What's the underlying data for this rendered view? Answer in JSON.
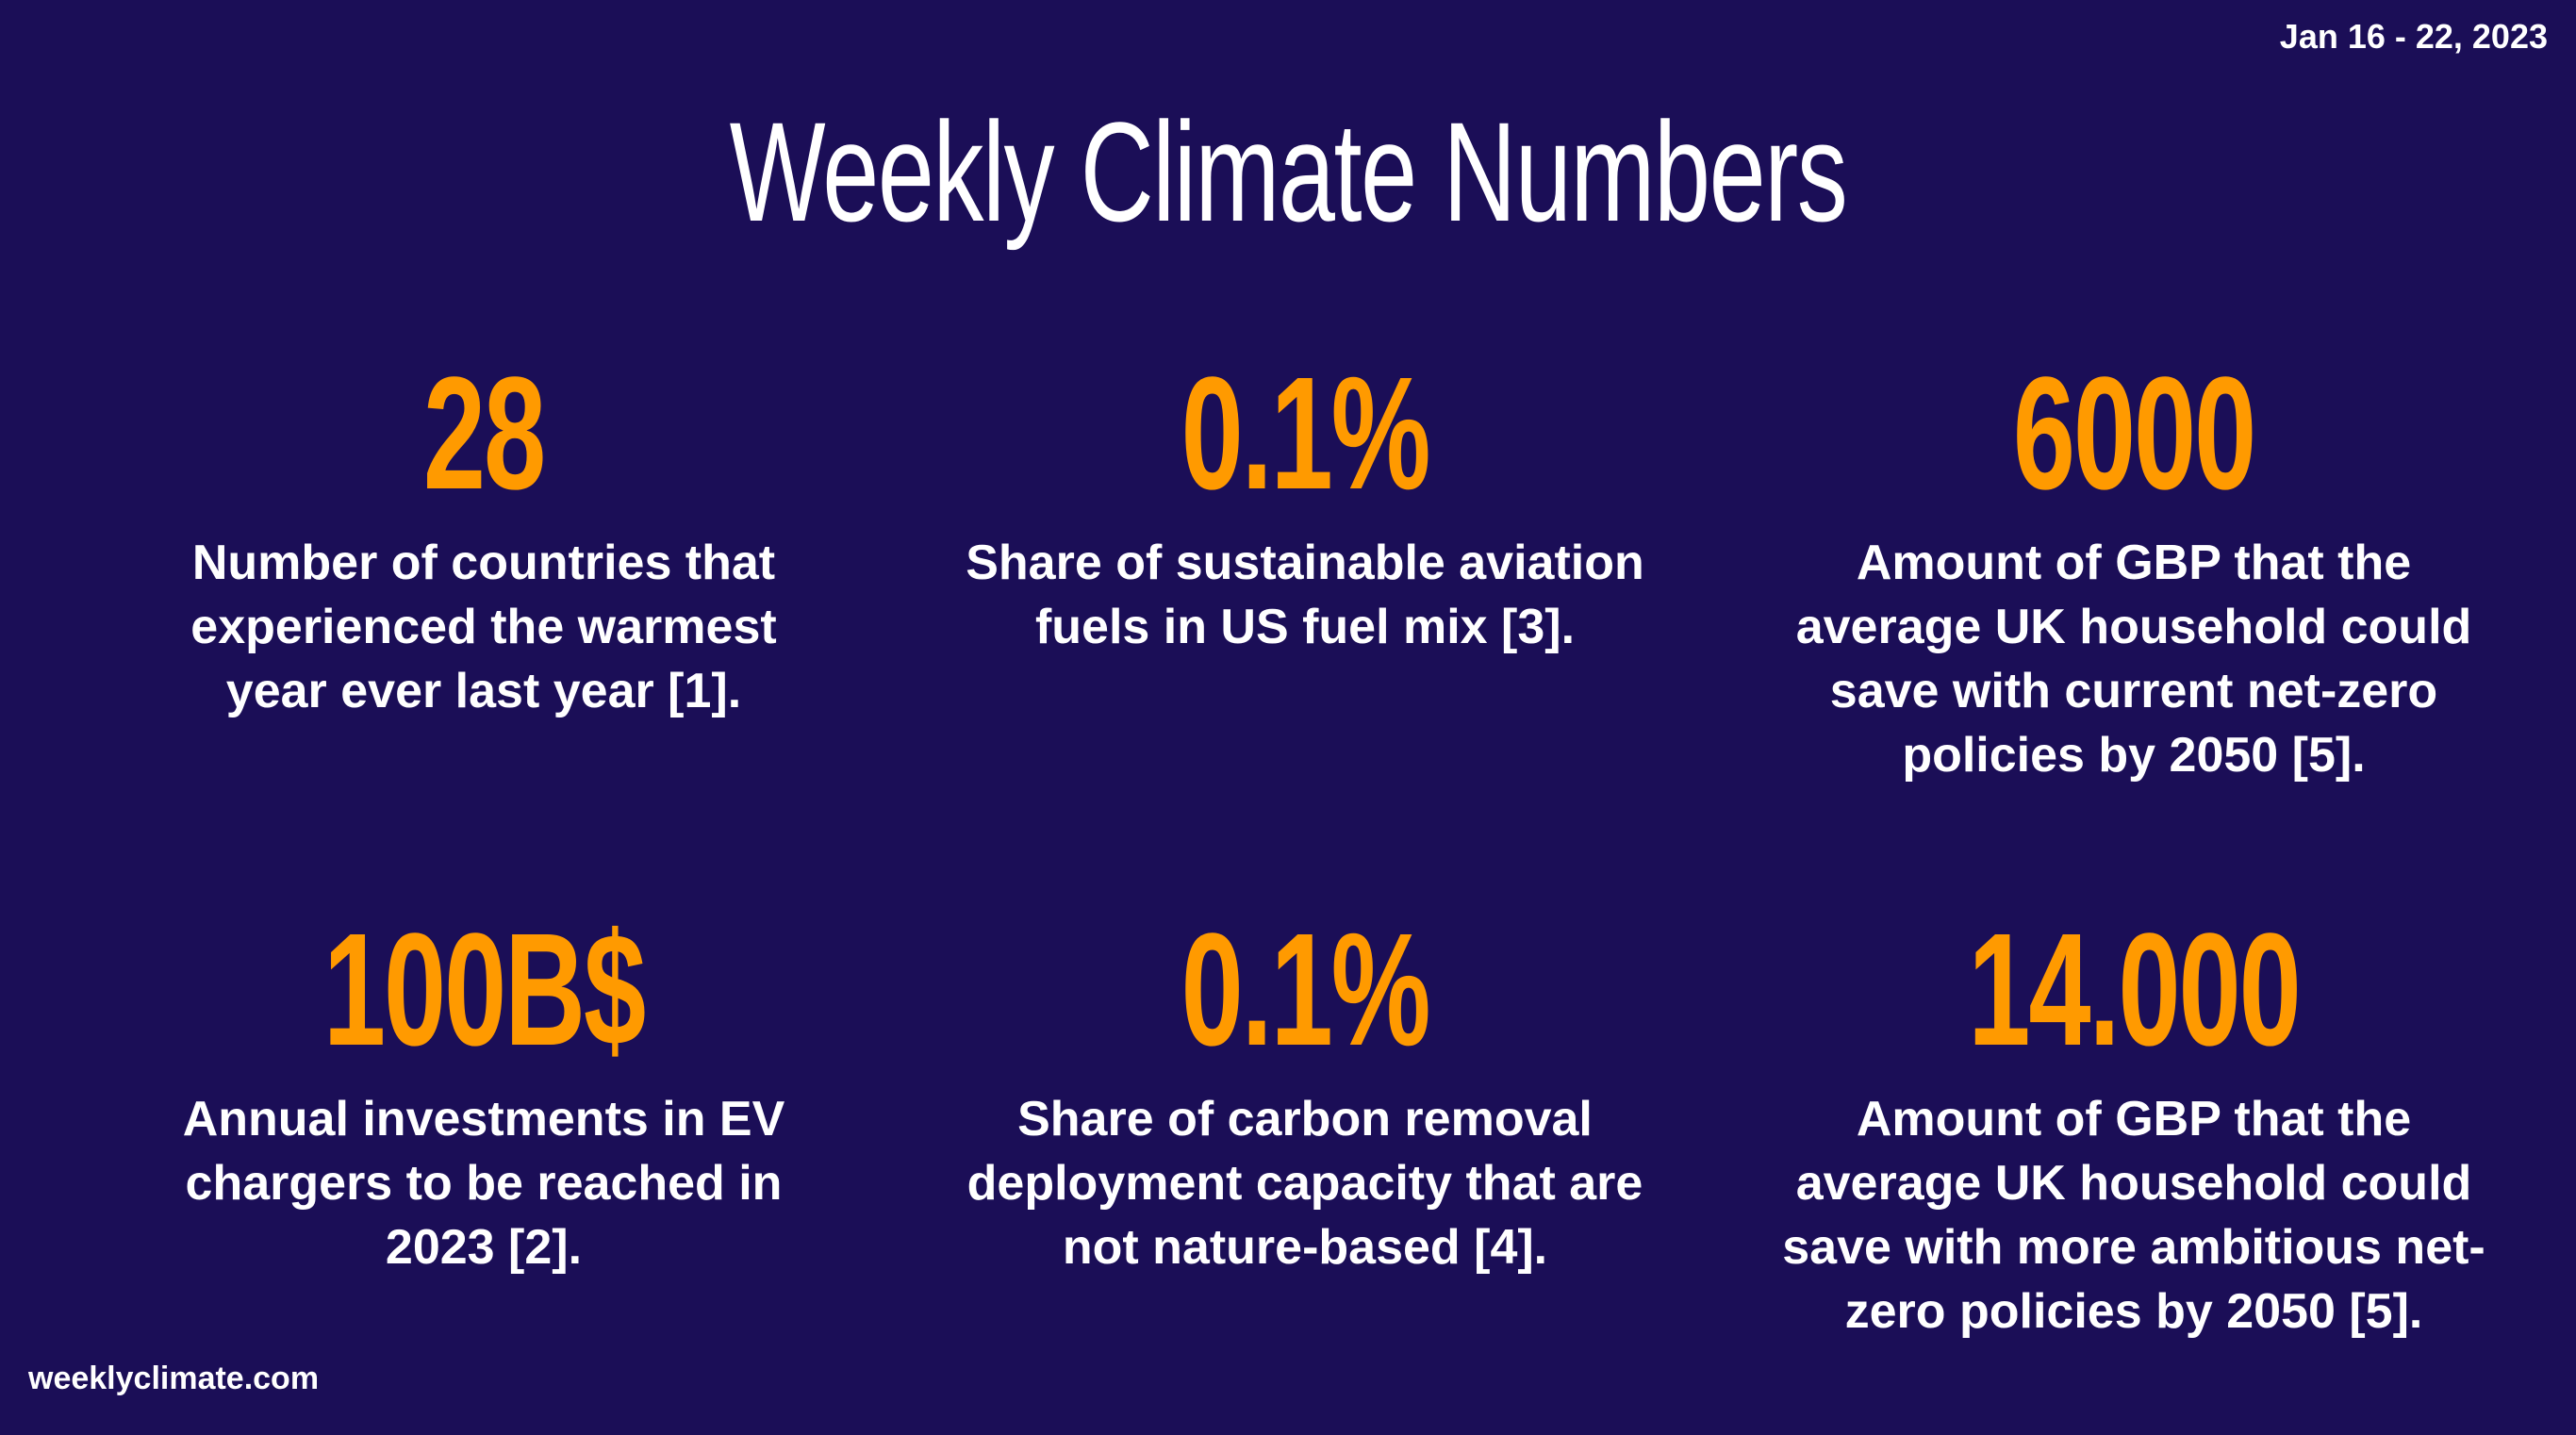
{
  "header": {
    "date_range": "Jan 16 - 22, 2023",
    "title": "Weekly Climate Numbers"
  },
  "stats": [
    {
      "value": "28",
      "description": "Number of countries that experienced the warmest year ever last year [1]."
    },
    {
      "value": "0.1%",
      "description": "Share of sustainable aviation fuels in US fuel mix [3]."
    },
    {
      "value": "6000",
      "description": "Amount of GBP that the average UK household could save with current net-zero policies by 2050 [5]."
    },
    {
      "value": "100B$",
      "description": "Annual investments in EV chargers to be reached in 2023 [2]."
    },
    {
      "value": "0.1%",
      "description": "Share of carbon removal deployment capacity that are not nature-based [4]."
    },
    {
      "value": "14.000",
      "description": "Amount of GBP that the average UK household could save with more ambitious net-zero policies by 2050 [5]."
    }
  ],
  "footer": {
    "site": "weeklyclimate.com"
  },
  "colors": {
    "background": "#1b0e57",
    "accent": "#ff9a00",
    "text": "#ffffff"
  }
}
